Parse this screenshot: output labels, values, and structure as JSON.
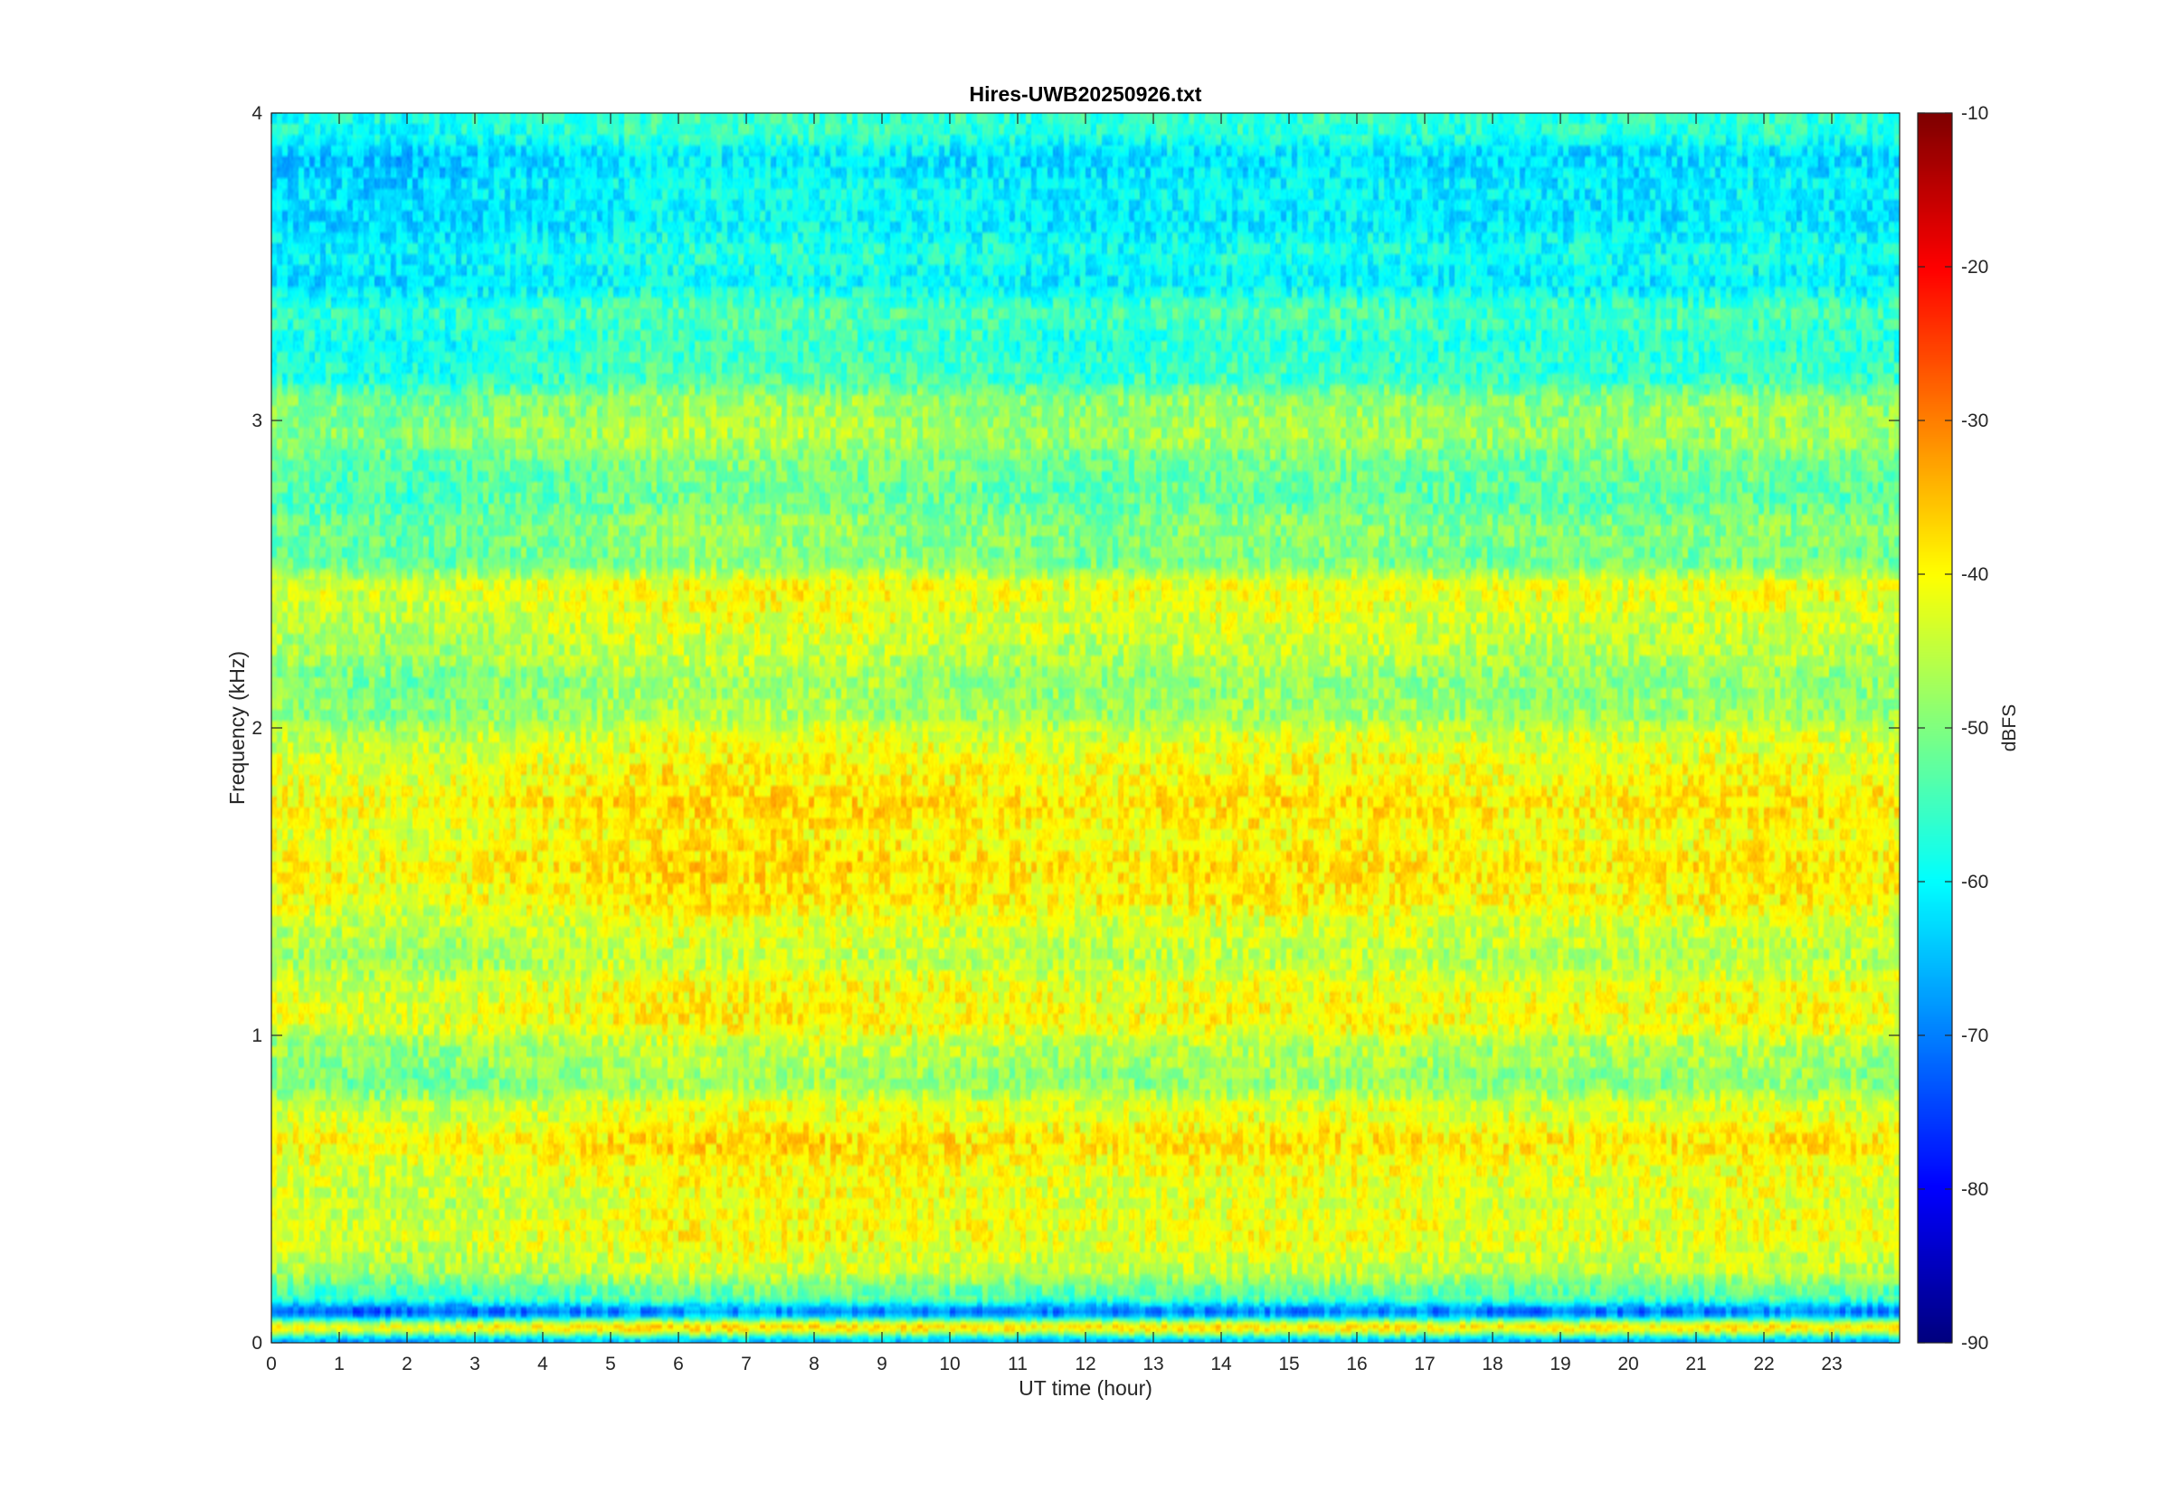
{
  "chart_data": {
    "type": "heatmap",
    "title": "Hires-UWB20250926.txt",
    "xlabel": "UT time (hour)",
    "ylabel": "Frequency (kHz)",
    "xlim": [
      0,
      24
    ],
    "ylim": [
      0,
      4
    ],
    "x_ticks": [
      0,
      1,
      2,
      3,
      4,
      5,
      6,
      7,
      8,
      9,
      10,
      11,
      12,
      13,
      14,
      15,
      16,
      17,
      18,
      19,
      20,
      21,
      22,
      23
    ],
    "x_tick_labels": [
      "0",
      "1",
      "2",
      "3",
      "4",
      "5",
      "6",
      "7",
      "8",
      "9",
      "10",
      "11",
      "12",
      "13",
      "14",
      "15",
      "16",
      "17",
      "18",
      "19",
      "20",
      "21",
      "22",
      "23"
    ],
    "y_ticks": [
      0,
      1,
      2,
      3,
      4
    ],
    "y_tick_labels": [
      "0",
      "1",
      "2",
      "3",
      "4"
    ],
    "colorbar": {
      "label": "dBFS",
      "colormap": "jet",
      "range": [
        -90,
        -10
      ],
      "ticks": [
        -90,
        -80,
        -70,
        -60,
        -50,
        -40,
        -30,
        -20,
        -10
      ],
      "tick_labels": [
        "-90",
        "-80",
        "-70",
        "-60",
        "-50",
        "-40",
        "-30",
        "-20",
        "-10"
      ]
    },
    "frequency_profile_khz_dbfs": [
      [
        0.0,
        -68
      ],
      [
        0.05,
        -40
      ],
      [
        0.1,
        -72
      ],
      [
        0.15,
        -55
      ],
      [
        0.25,
        -46
      ],
      [
        0.35,
        -43
      ],
      [
        0.45,
        -44
      ],
      [
        0.55,
        -43
      ],
      [
        0.65,
        -40
      ],
      [
        0.75,
        -44
      ],
      [
        0.85,
        -50
      ],
      [
        0.95,
        -48
      ],
      [
        1.05,
        -42
      ],
      [
        1.15,
        -43
      ],
      [
        1.25,
        -47
      ],
      [
        1.35,
        -45
      ],
      [
        1.45,
        -41
      ],
      [
        1.55,
        -40
      ],
      [
        1.65,
        -42
      ],
      [
        1.75,
        -40
      ],
      [
        1.85,
        -42
      ],
      [
        1.95,
        -44
      ],
      [
        2.05,
        -49
      ],
      [
        2.15,
        -50
      ],
      [
        2.25,
        -47
      ],
      [
        2.35,
        -45
      ],
      [
        2.45,
        -43
      ],
      [
        2.55,
        -52
      ],
      [
        2.65,
        -51
      ],
      [
        2.75,
        -54
      ],
      [
        2.85,
        -53
      ],
      [
        2.95,
        -49
      ],
      [
        3.05,
        -50
      ],
      [
        3.15,
        -57
      ],
      [
        3.25,
        -58
      ],
      [
        3.35,
        -56
      ],
      [
        3.45,
        -62
      ],
      [
        3.55,
        -60
      ],
      [
        3.65,
        -63
      ],
      [
        3.75,
        -62
      ],
      [
        3.85,
        -64
      ],
      [
        3.95,
        -58
      ]
    ],
    "time_profile_hour_offset_db": [
      [
        0,
        0
      ],
      [
        2,
        -1
      ],
      [
        4,
        1
      ],
      [
        6,
        3
      ],
      [
        8,
        3
      ],
      [
        10,
        2
      ],
      [
        12,
        1
      ],
      [
        14,
        2
      ],
      [
        16,
        2
      ],
      [
        18,
        1
      ],
      [
        20,
        1
      ],
      [
        22,
        2
      ],
      [
        24,
        1
      ]
    ]
  }
}
